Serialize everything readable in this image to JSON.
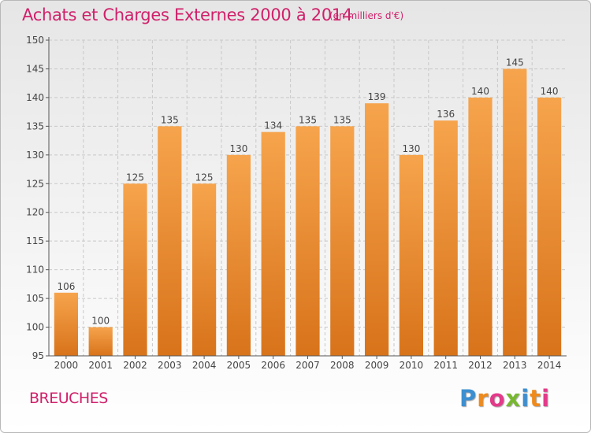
{
  "header": {
    "title": "Achats et Charges Externes 2000 à 2014",
    "subtitle": "(en milliers d'€)"
  },
  "footer": {
    "town": "BREUCHES",
    "logo_letters": [
      "P",
      "r",
      "o",
      "x",
      "i",
      "t",
      "i"
    ],
    "logo_colors": [
      "#3c8fd0",
      "#ef8a1c",
      "#e33a8a",
      "#78b830",
      "#3c8fd0",
      "#ef8a1c",
      "#e33a8a"
    ]
  },
  "colors": {
    "accent": "#d0206a",
    "bar_light": "#f6a44d",
    "bar_dark": "#d8731a"
  },
  "chart_data": {
    "type": "bar",
    "title": "Achats et Charges Externes 2000 à 2014",
    "subtitle": "(en milliers d'€)",
    "categories": [
      "2000",
      "2001",
      "2002",
      "2003",
      "2004",
      "2005",
      "2006",
      "2007",
      "2008",
      "2009",
      "2010",
      "2011",
      "2012",
      "2013",
      "2014"
    ],
    "values": [
      106,
      100,
      125,
      135,
      125,
      130,
      134,
      135,
      135,
      139,
      130,
      136,
      140,
      145,
      140
    ],
    "ylim": [
      95,
      150
    ],
    "yticks": [
      95,
      100,
      105,
      110,
      115,
      120,
      125,
      130,
      135,
      140,
      145,
      150
    ],
    "grid": true,
    "legend": "none"
  }
}
